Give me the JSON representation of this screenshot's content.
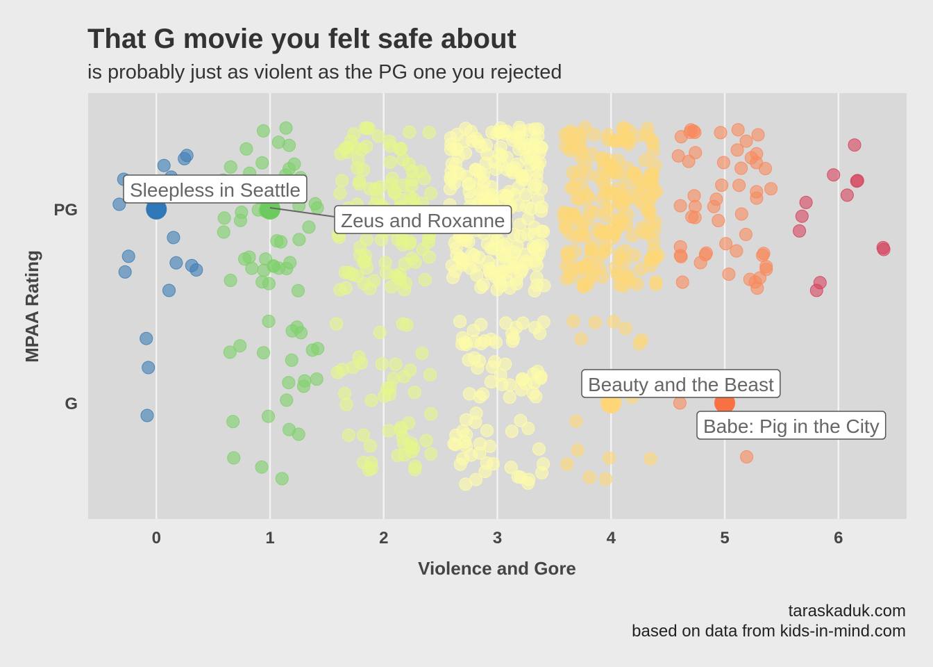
{
  "chart_data": {
    "type": "scatter",
    "title": "That G movie you felt safe about",
    "subtitle": "is probably just as violent as the PG one you rejected",
    "xlabel": "Violence and Gore",
    "ylabel": "MPAA Rating",
    "x_ticks": [
      "0",
      "1",
      "2",
      "3",
      "4",
      "5",
      "6"
    ],
    "y_categories": [
      "G",
      "PG"
    ],
    "xlim": [
      -0.6,
      6.6
    ],
    "grid": true,
    "jitter": true,
    "colors": {
      "0": "#3f7fb6",
      "1": "#7fd06b",
      "2": "#e4f78a",
      "3": "#fdfca8",
      "4": "#fed777",
      "5": "#f88a5e",
      "6": "#d5445d"
    },
    "counts": {
      "PG": {
        "0": 17,
        "1": 44,
        "2": 110,
        "3": 230,
        "4": 200,
        "5": 52,
        "6": 12
      },
      "G": {
        "0": 3,
        "1": 22,
        "2": 48,
        "3": 80,
        "4": 18,
        "5": 4,
        "6": 0
      }
    },
    "highlighted": [
      {
        "label": "Sleepless in Seattle",
        "x": 0,
        "rating": "PG",
        "color": "#2e78b7"
      },
      {
        "label": "Zeus and Roxanne",
        "x": 1,
        "rating": "PG",
        "color": "#6cca5e"
      },
      {
        "label": "Beauty and the Beast",
        "x": 4,
        "rating": "G",
        "color": "#fed677"
      },
      {
        "label": "Babe: Pig in the City",
        "x": 5,
        "rating": "G",
        "color": "#f97142"
      }
    ],
    "caption": [
      "taraskaduk.com",
      "based on data from kids-in-mind.com"
    ]
  }
}
